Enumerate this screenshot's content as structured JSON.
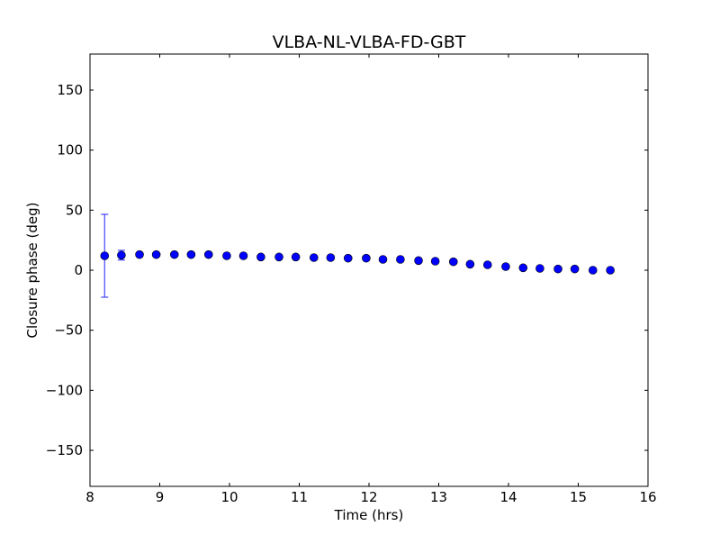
{
  "chart_data": {
    "type": "scatter",
    "title": "VLBA-NL-VLBA-FD-GBT",
    "xlabel": "Time (hrs)",
    "ylabel": "Closure phase (deg)",
    "xlim": [
      8,
      16
    ],
    "ylim": [
      -180,
      180
    ],
    "xticks": [
      8,
      9,
      10,
      11,
      12,
      13,
      14,
      15,
      16
    ],
    "xtick_labels": [
      "8",
      "9",
      "10",
      "11",
      "12",
      "13",
      "14",
      "15",
      "16"
    ],
    "yticks": [
      -150,
      -100,
      -50,
      0,
      50,
      100,
      150
    ],
    "ytick_labels": [
      "−150",
      "−100",
      "−50",
      "0",
      "50",
      "100",
      "150"
    ],
    "grid": false,
    "marker_color": "#0000ff",
    "errorbar_color": "#4444ff",
    "series": [
      {
        "name": "closure phase",
        "x": [
          8.21,
          8.45,
          8.71,
          8.95,
          9.21,
          9.45,
          9.7,
          9.96,
          10.2,
          10.45,
          10.71,
          10.95,
          11.21,
          11.45,
          11.7,
          11.96,
          12.2,
          12.45,
          12.71,
          12.95,
          13.21,
          13.45,
          13.7,
          13.96,
          14.21,
          14.45,
          14.71,
          14.95,
          15.21,
          15.46
        ],
        "y": [
          12,
          12.5,
          13,
          13,
          13,
          13,
          13,
          12,
          12,
          11,
          11,
          11,
          10.5,
          10.5,
          10,
          10,
          9,
          9,
          8,
          7.5,
          7,
          5,
          4.5,
          3,
          2,
          1.5,
          1,
          1,
          0,
          0
        ],
        "yerr": [
          34.5,
          4,
          1,
          1,
          1,
          1,
          1,
          1,
          1,
          1,
          1,
          1,
          1,
          1,
          1,
          1,
          1,
          1,
          1,
          1,
          1,
          1,
          1,
          1,
          1,
          1,
          1,
          1,
          1,
          1
        ]
      }
    ]
  }
}
